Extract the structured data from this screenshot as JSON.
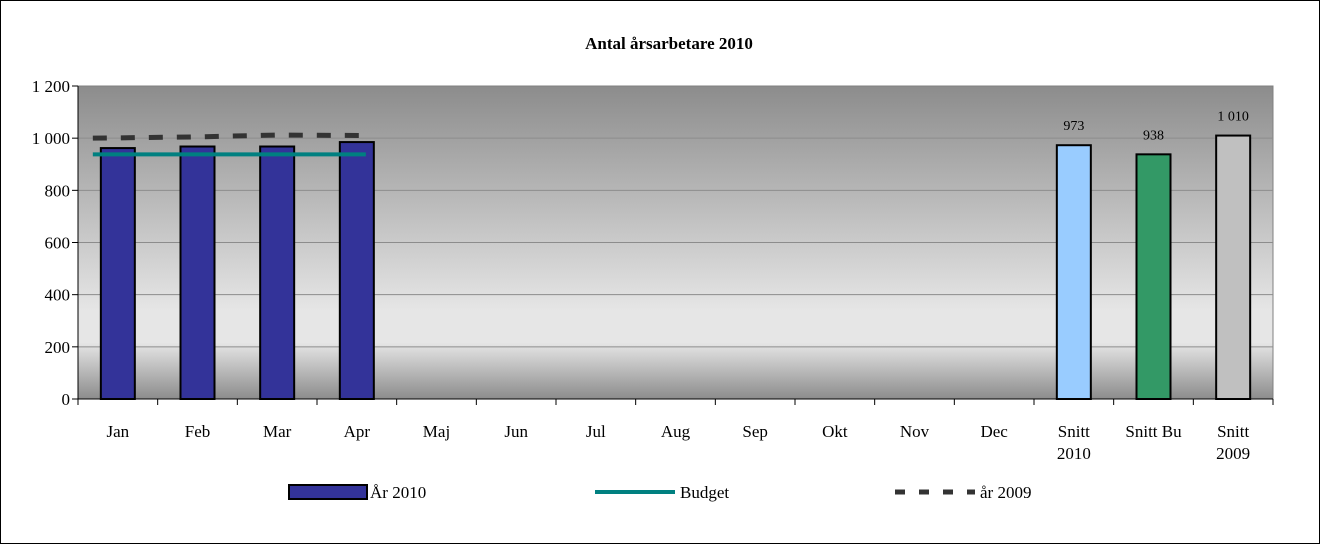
{
  "chart_data": {
    "type": "bar",
    "title": "Antal årsarbetare 2010",
    "categories": [
      [
        "Jan"
      ],
      [
        "Feb"
      ],
      [
        "Mar"
      ],
      [
        "Apr"
      ],
      [
        "Maj"
      ],
      [
        "Jun"
      ],
      [
        "Jul"
      ],
      [
        "Aug"
      ],
      [
        "Sep"
      ],
      [
        "Okt"
      ],
      [
        "Nov"
      ],
      [
        "Dec"
      ],
      [
        "Snitt",
        "2010"
      ],
      [
        "Snitt Bu"
      ],
      [
        "Snitt",
        "2009"
      ]
    ],
    "ylim": [
      0,
      1200
    ],
    "yticks": [
      0,
      200,
      400,
      600,
      800,
      1000,
      1200
    ],
    "ytick_labels": [
      "0",
      "200",
      "400",
      "600",
      "800",
      "1 000",
      "1 200"
    ],
    "grid": true,
    "legend_position": "bottom",
    "series": [
      {
        "name": "År 2010",
        "kind": "bar",
        "color": "#333399",
        "values": [
          962,
          968,
          968,
          985,
          null,
          null,
          null,
          null,
          null,
          null,
          null,
          null,
          null,
          null,
          null
        ]
      },
      {
        "name": "Budget",
        "kind": "line",
        "color": "#008080",
        "values": [
          938,
          938,
          938,
          938,
          null,
          null,
          null,
          null,
          null,
          null,
          null,
          null,
          null,
          null,
          null
        ]
      },
      {
        "name": "år 2009",
        "kind": "dashed-line",
        "color": "#333333",
        "values": [
          1000,
          1005,
          1012,
          1010,
          null,
          null,
          null,
          null,
          null,
          null,
          null,
          null,
          null,
          null,
          null
        ]
      }
    ],
    "summary_bars": [
      {
        "category_index": 12,
        "value": 973,
        "label": "973",
        "color": "#99CCFF"
      },
      {
        "category_index": 13,
        "value": 938,
        "label": "938",
        "color": "#339966"
      },
      {
        "category_index": 14,
        "value": 1010,
        "label": "1 010",
        "color": "#C0C0C0"
      }
    ]
  }
}
